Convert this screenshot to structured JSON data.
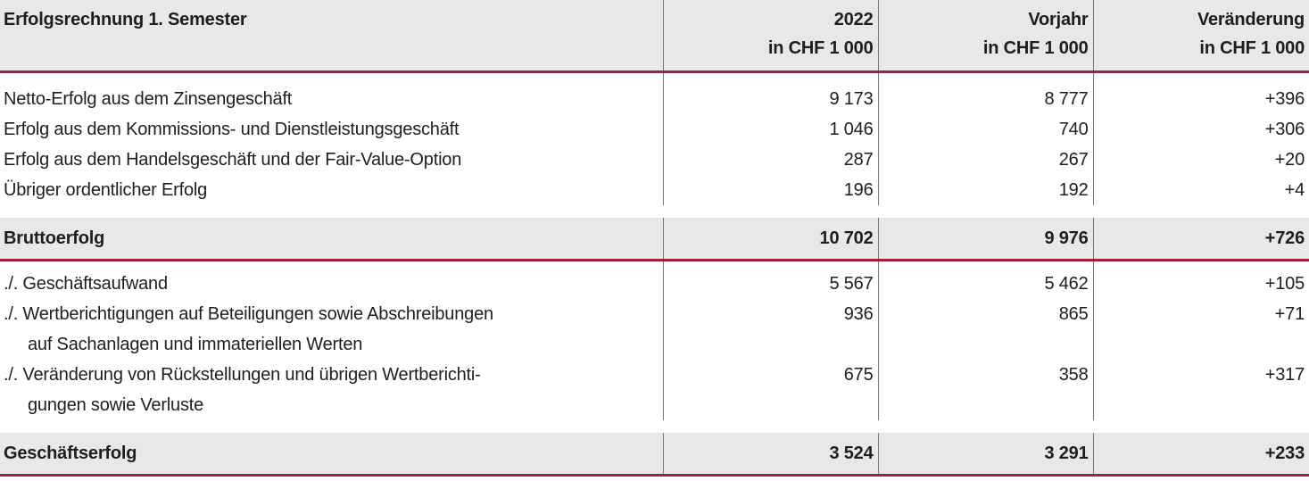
{
  "table": {
    "header": {
      "label": "Erfolgsrechnung 1. Semester",
      "col1": [
        "2022",
        "in CHF 1 000"
      ],
      "col2": [
        "Vorjahr",
        "in CHF 1 000"
      ],
      "col3": [
        "Veränderung",
        "in CHF 1 000"
      ]
    },
    "rows": [
      {
        "label": "Netto-Erfolg aus dem Zinsengeschäft",
        "v2022": "9 173",
        "vorjahr": "8 777",
        "change": "+396"
      },
      {
        "label": "Erfolg aus dem Kommissions- und Dienstleistungsgeschäft",
        "v2022": "1 046",
        "vorjahr": "740",
        "change": "+306"
      },
      {
        "label": "Erfolg aus dem Handelsgeschäft und der Fair-Value-Option",
        "v2022": "287",
        "vorjahr": "267",
        "change": "+20"
      },
      {
        "label": "Übriger ordentlicher Erfolg",
        "v2022": "196",
        "vorjahr": "192",
        "change": "+4"
      }
    ],
    "subtotal": {
      "label": "Bruttoerfolg",
      "v2022": "10 702",
      "vorjahr": "9 976",
      "change": "+726"
    },
    "expenses": [
      {
        "label": "./. Geschäftsaufwand",
        "label2": "",
        "v2022": "5 567",
        "vorjahr": "5 462",
        "change": "+105"
      },
      {
        "label": "./. Wertberichtigungen auf Beteiligungen sowie Abschreibungen",
        "label2": "auf Sachanlagen und immateriellen Werten",
        "v2022": "936",
        "vorjahr": "865",
        "change": "+71"
      },
      {
        "label": "./. Veränderung von Rückstellungen und übrigen Wertberichti-",
        "label2": "gungen sowie Verluste",
        "v2022": "675",
        "vorjahr": "358",
        "change": "+317"
      }
    ],
    "total": {
      "label": "Geschäftserfolg",
      "v2022": "3 524",
      "vorjahr": "3 291",
      "change": "+233"
    }
  }
}
